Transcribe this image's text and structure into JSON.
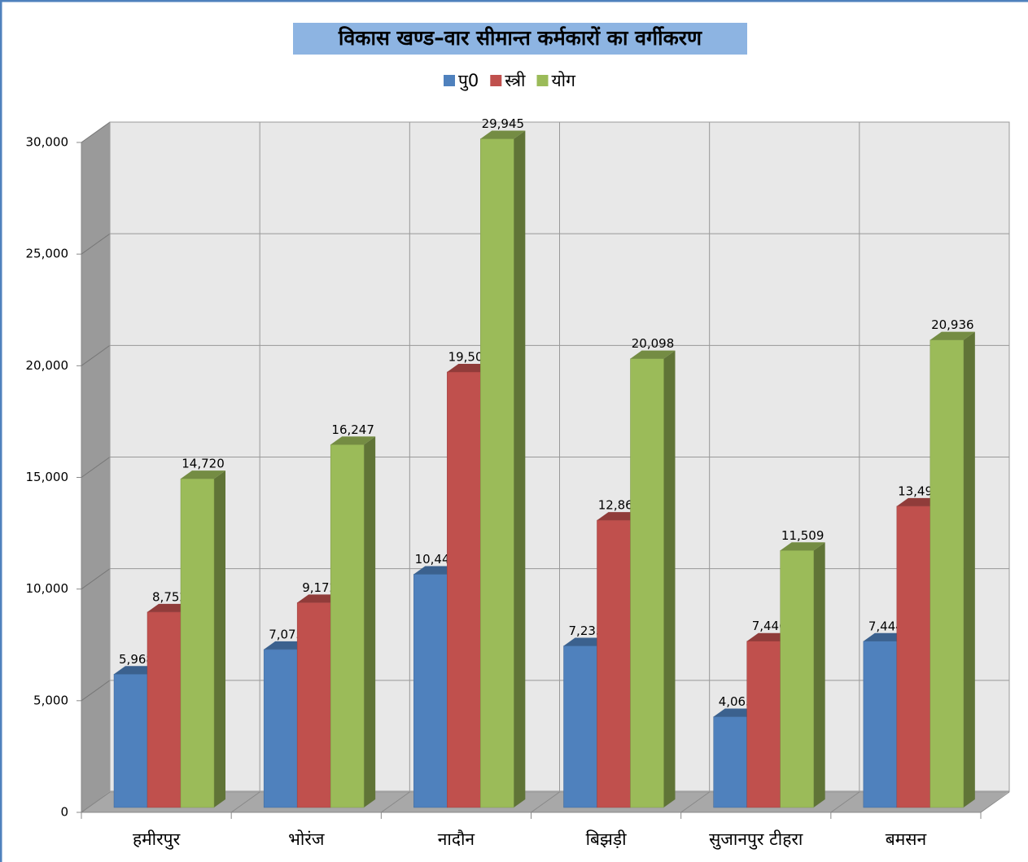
{
  "chart_data": {
    "type": "bar3d",
    "title": "विकास खण्ड–वार सीमान्त कर्मकारों का वर्गीकरण",
    "categories": [
      "हमीरपुर",
      "भोरंज",
      "नादौन",
      "बिझड़ी",
      "सुजानपुर टीहरा",
      "बमसन"
    ],
    "series": [
      {
        "name": "पु0",
        "color": "#4f81bd",
        "values": [
          5968,
          7075,
          10443,
          7235,
          4063,
          7444
        ],
        "value_labels": [
          "5,968",
          "7,075",
          "10,443",
          "7,235",
          "4,063",
          "7,444"
        ]
      },
      {
        "name": "स्त्री",
        "color": "#c0504d",
        "values": [
          8752,
          9172,
          19502,
          12863,
          7446,
          13492
        ],
        "value_labels": [
          "8,752",
          "9,172",
          "19,502",
          "12,863",
          "7,446",
          "13,492"
        ]
      },
      {
        "name": "योग",
        "color": "#9bbb59",
        "values": [
          14720,
          16247,
          29945,
          20098,
          11509,
          20936
        ],
        "value_labels": [
          "14,720",
          "16,247",
          "29,945",
          "20,098",
          "11,509",
          "20,936"
        ]
      }
    ],
    "ylim": [
      0,
      30000
    ],
    "yticks": [
      0,
      {
        "value": 5000,
        "label": "5,000"
      },
      {
        "value": 10000,
        "label": "10,000"
      },
      {
        "value": 15000,
        "label": "15,000"
      },
      {
        "value": 20000,
        "label": "20,000"
      },
      {
        "value": 25000,
        "label": "25,000"
      },
      {
        "value": 30000,
        "label": "30,000"
      }
    ],
    "grid": true,
    "legend": "top"
  }
}
